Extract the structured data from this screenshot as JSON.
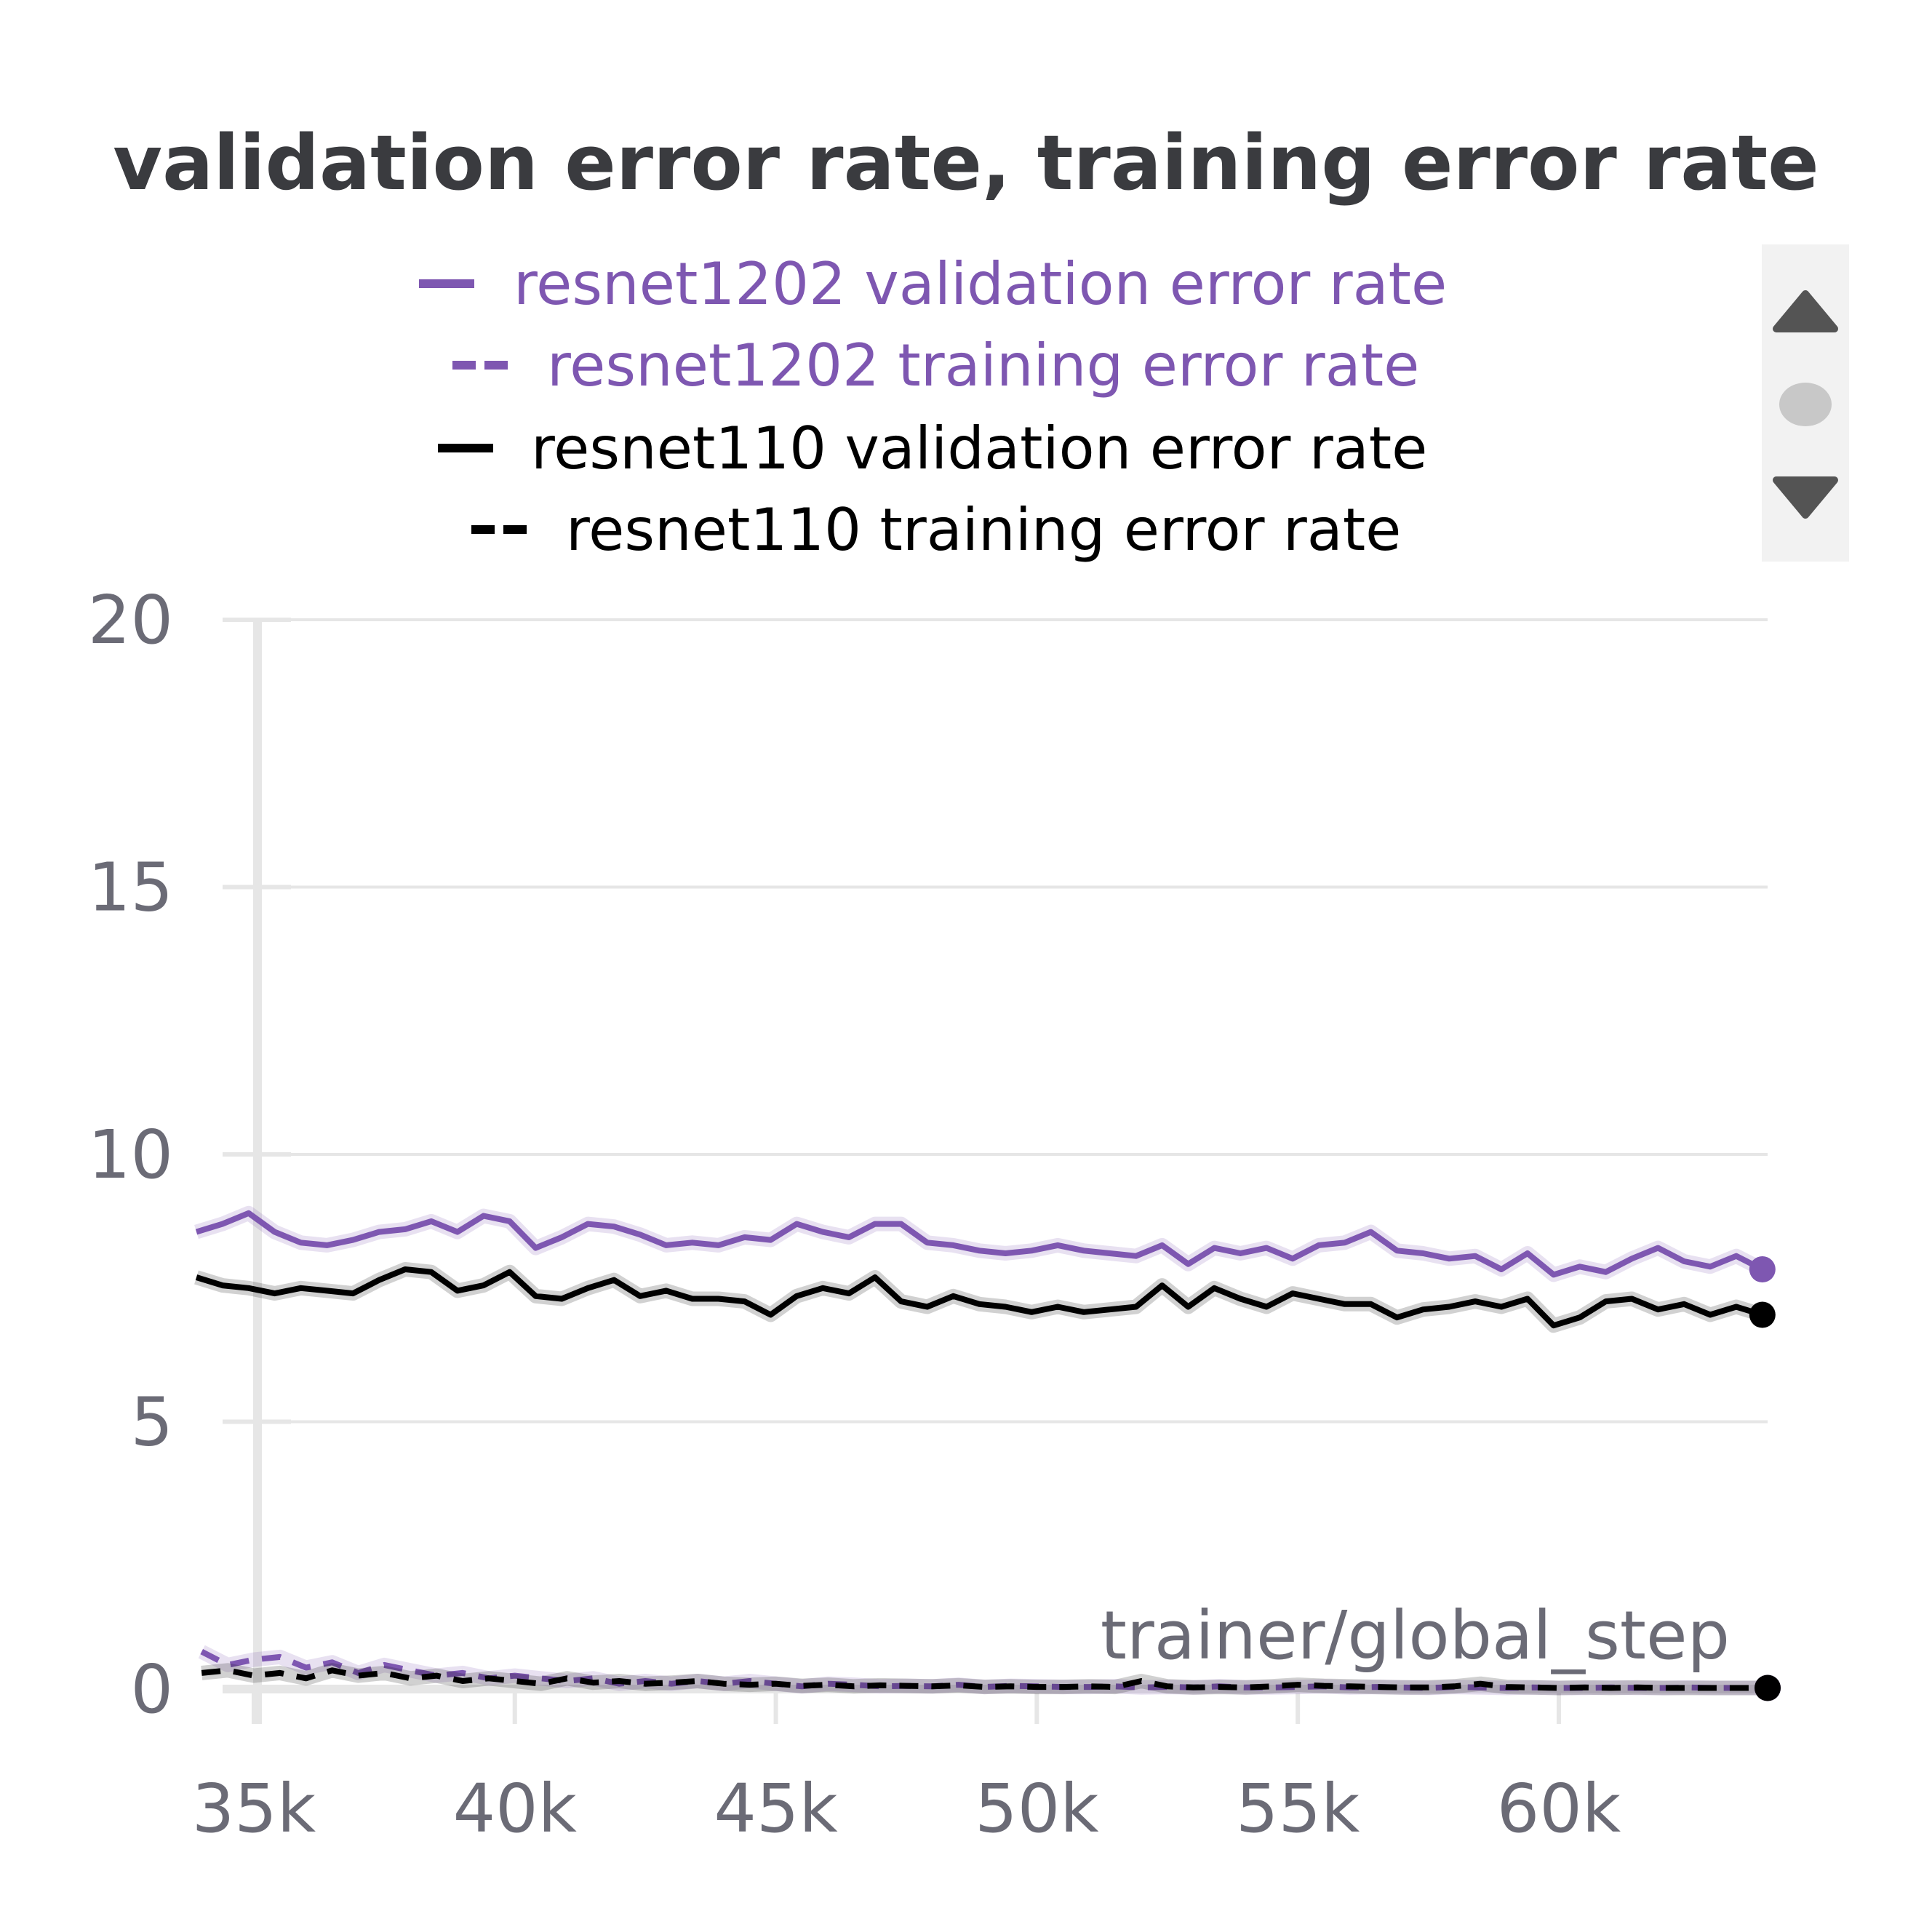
{
  "chart_data": {
    "type": "line",
    "title": "validation error rate, training error rate",
    "xlabel": "trainer/global_step",
    "ylabel": "",
    "xlim": [
      33900,
      64000
    ],
    "ylim": [
      0,
      20
    ],
    "xticks": [
      35000,
      40000,
      45000,
      50000,
      55000,
      60000
    ],
    "xtick_labels": [
      "35k",
      "40k",
      "45k",
      "50k",
      "55k",
      "60k"
    ],
    "yticks": [
      0,
      5,
      10,
      15,
      20
    ],
    "ytick_labels": [
      "0",
      "5",
      "10",
      "15",
      "20"
    ],
    "grid": true,
    "legend_position": "top",
    "series": [
      {
        "name": "resnet1202 validation error rate",
        "color": "#7e57b1",
        "style": "solid",
        "x": [
          33900,
          34400,
          34900,
          35400,
          35900,
          36400,
          36900,
          37400,
          37900,
          38400,
          38900,
          39400,
          39900,
          40400,
          40900,
          41400,
          41900,
          42400,
          42900,
          43400,
          43900,
          44400,
          44900,
          45400,
          45900,
          46400,
          46900,
          47400,
          47900,
          48400,
          48900,
          49400,
          49900,
          50400,
          50900,
          51400,
          51900,
          52400,
          52900,
          53400,
          53900,
          54400,
          54900,
          55400,
          55900,
          56400,
          56900,
          57400,
          57900,
          58400,
          58900,
          59400,
          59900,
          60400,
          60900,
          61400,
          61900,
          62400,
          62900,
          63400,
          63900
        ],
        "values": [
          8.55,
          8.7,
          8.9,
          8.55,
          8.35,
          8.3,
          8.4,
          8.55,
          8.6,
          8.75,
          8.55,
          8.85,
          8.75,
          8.25,
          8.45,
          8.7,
          8.65,
          8.5,
          8.3,
          8.35,
          8.3,
          8.45,
          8.4,
          8.7,
          8.55,
          8.45,
          8.7,
          8.7,
          8.35,
          8.3,
          8.2,
          8.15,
          8.2,
          8.3,
          8.2,
          8.15,
          8.1,
          8.3,
          7.95,
          8.25,
          8.15,
          8.25,
          8.05,
          8.3,
          8.35,
          8.55,
          8.2,
          8.15,
          8.05,
          8.1,
          7.85,
          8.15,
          7.75,
          7.9,
          7.8,
          8.05,
          8.25,
          8.0,
          7.9,
          8.1,
          7.85
        ]
      },
      {
        "name": "resnet1202 training error rate",
        "color": "#7e57b1",
        "style": "dashed",
        "x": [
          34000,
          34500,
          35000,
          35500,
          36000,
          36500,
          37000,
          37500,
          38000,
          38500,
          39000,
          39500,
          40000,
          40500,
          41000,
          41500,
          42000,
          42500,
          43000,
          43500,
          44000,
          44500,
          45000,
          45500,
          46000,
          46500,
          47000,
          47500,
          48000,
          48500,
          49000,
          49500,
          50000,
          50500,
          51000,
          51500,
          52000,
          52500,
          53000,
          53500,
          54000,
          54500,
          55000,
          55500,
          56000,
          56500,
          57000,
          57500,
          58000,
          58500,
          59000,
          59500,
          60000,
          60500,
          61000,
          61500,
          62000,
          62500,
          63000,
          63500,
          64000
        ],
        "values": [
          0.7,
          0.45,
          0.55,
          0.6,
          0.4,
          0.5,
          0.3,
          0.45,
          0.35,
          0.25,
          0.3,
          0.2,
          0.25,
          0.2,
          0.15,
          0.2,
          0.1,
          0.15,
          0.1,
          0.15,
          0.1,
          0.15,
          0.1,
          0.05,
          0.1,
          0.08,
          0.05,
          0.06,
          0.05,
          0.08,
          0.04,
          0.06,
          0.05,
          0.04,
          0.04,
          0.05,
          0.03,
          0.04,
          0.03,
          0.05,
          0.03,
          0.03,
          0.04,
          0.05,
          0.03,
          0.04,
          0.03,
          0.02,
          0.04,
          0.03,
          0.02,
          0.03,
          0.02,
          0.02,
          0.03,
          0.02,
          0.02,
          0.03,
          0.02,
          0.02,
          0.02
        ]
      },
      {
        "name": "resnet110 validation error rate",
        "color": "#000000",
        "style": "solid",
        "x": [
          33900,
          34400,
          34900,
          35400,
          35900,
          36400,
          36900,
          37400,
          37900,
          38400,
          38900,
          39400,
          39900,
          40400,
          40900,
          41400,
          41900,
          42400,
          42900,
          43400,
          43900,
          44400,
          44900,
          45400,
          45900,
          46400,
          46900,
          47400,
          47900,
          48400,
          48900,
          49400,
          49900,
          50400,
          50900,
          51400,
          51900,
          52400,
          52900,
          53400,
          53900,
          54400,
          54900,
          55400,
          55900,
          56400,
          56900,
          57400,
          57900,
          58400,
          58900,
          59400,
          59900,
          60400,
          60900,
          61400,
          61900,
          62400,
          62900,
          63400,
          63900
        ],
        "values": [
          7.7,
          7.55,
          7.5,
          7.4,
          7.5,
          7.45,
          7.4,
          7.65,
          7.85,
          7.8,
          7.45,
          7.55,
          7.8,
          7.35,
          7.3,
          7.5,
          7.65,
          7.35,
          7.45,
          7.3,
          7.3,
          7.25,
          7.0,
          7.35,
          7.5,
          7.4,
          7.7,
          7.25,
          7.15,
          7.35,
          7.2,
          7.15,
          7.05,
          7.15,
          7.05,
          7.1,
          7.15,
          7.55,
          7.15,
          7.5,
          7.3,
          7.15,
          7.4,
          7.3,
          7.2,
          7.2,
          6.95,
          7.1,
          7.15,
          7.25,
          7.15,
          7.3,
          6.8,
          6.95,
          7.25,
          7.3,
          7.1,
          7.2,
          7.0,
          7.15,
          7.0
        ]
      },
      {
        "name": "resnet110 training error rate",
        "color": "#000000",
        "style": "dashed",
        "x": [
          34000,
          34500,
          35000,
          35500,
          36000,
          36500,
          37000,
          37500,
          38000,
          38500,
          39000,
          39500,
          40000,
          40500,
          41000,
          41500,
          42000,
          42500,
          43000,
          43500,
          44000,
          44500,
          45000,
          45500,
          46000,
          46500,
          47000,
          47500,
          48000,
          48500,
          49000,
          49500,
          50000,
          50500,
          51000,
          51500,
          52000,
          52500,
          53000,
          53500,
          54000,
          54500,
          55000,
          55500,
          56000,
          56500,
          57000,
          57500,
          58000,
          58500,
          59000,
          59500,
          60000,
          60500,
          61000,
          61500,
          62000,
          62500,
          63000,
          63500,
          64000
        ],
        "values": [
          0.3,
          0.35,
          0.25,
          0.3,
          0.2,
          0.35,
          0.25,
          0.3,
          0.2,
          0.25,
          0.15,
          0.2,
          0.15,
          0.1,
          0.2,
          0.12,
          0.15,
          0.1,
          0.12,
          0.15,
          0.1,
          0.08,
          0.1,
          0.06,
          0.08,
          0.05,
          0.07,
          0.06,
          0.05,
          0.07,
          0.04,
          0.05,
          0.04,
          0.04,
          0.05,
          0.04,
          0.15,
          0.05,
          0.03,
          0.04,
          0.03,
          0.05,
          0.08,
          0.06,
          0.05,
          0.04,
          0.03,
          0.03,
          0.05,
          0.1,
          0.04,
          0.03,
          0.02,
          0.03,
          0.02,
          0.03,
          0.02,
          0.02,
          0.02,
          0.02,
          0.02
        ]
      }
    ]
  },
  "scroll_controls": {
    "up_icon": "triangle-up-icon",
    "dot_icon": "circle-icon",
    "down_icon": "triangle-down-icon"
  }
}
